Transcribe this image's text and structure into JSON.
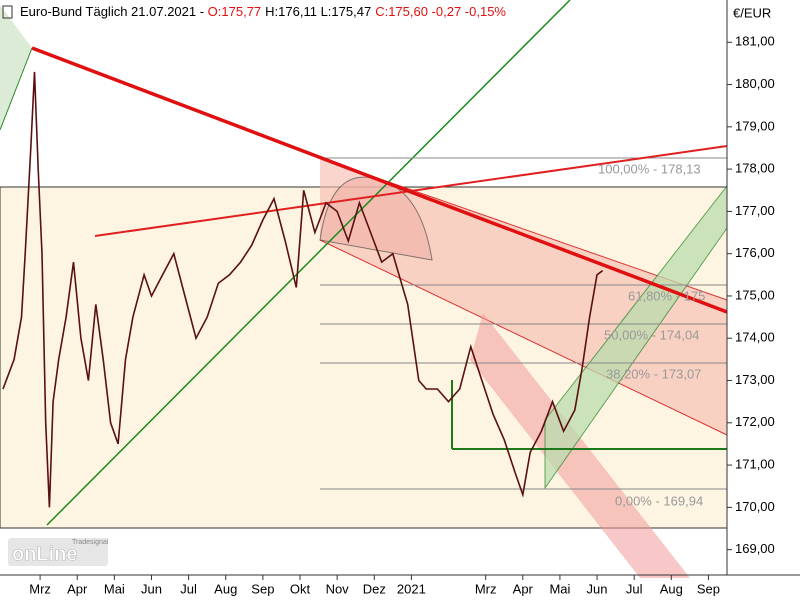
{
  "chart_data": {
    "type": "line",
    "header": {
      "name": "Euro-Bund Täglich  21.07.2021 - ",
      "open": "O:175,77",
      "highlow": "H:176,11 L:175,47",
      "close": "C:175,60 -0,27 -0,15%"
    },
    "unit_label": "€/EUR",
    "logo": {
      "brand": "Tradesignal",
      "text": "onLine"
    },
    "x": [
      0,
      0.3,
      0.5,
      0.6,
      0.75,
      0.85,
      0.95,
      1.05,
      1.15,
      1.25,
      1.35,
      1.5,
      1.7,
      1.9,
      2.1,
      2.3,
      2.5,
      2.7,
      2.9,
      3.1,
      3.3,
      3.5,
      3.8,
      4.0,
      4.3,
      4.6,
      4.9,
      5.2,
      5.5,
      5.8,
      6.1,
      6.4,
      6.7,
      7.0,
      7.3,
      7.6,
      7.9,
      8.1,
      8.4,
      8.7,
      9.0,
      9.3,
      9.6,
      9.9,
      10.2,
      10.5,
      10.9,
      11.2,
      11.4,
      11.7,
      12.0,
      12.3,
      12.6,
      12.9,
      13.2,
      13.5,
      13.8,
      14.0,
      14.2,
      14.5,
      14.8,
      15.1,
      15.4,
      15.6,
      15.8,
      16.0,
      16.15
    ],
    "series": [
      {
        "name": "Euro-Bund",
        "color": "#5a1010",
        "values": [
          172.8,
          173.5,
          174.5,
          176,
          178.5,
          180.3,
          178,
          176,
          172,
          170,
          172.5,
          173.5,
          174.5,
          175.8,
          174,
          173,
          174.8,
          173.5,
          172,
          171.5,
          173.5,
          174.5,
          175.5,
          175,
          175.5,
          176,
          175,
          174,
          174.5,
          175.3,
          175.5,
          175.8,
          176.2,
          176.8,
          177.3,
          176.3,
          175.2,
          177.5,
          176.5,
          177.2,
          177.0,
          176.3,
          177.2,
          176.5,
          175.8,
          176,
          174.8,
          173.0,
          172.8,
          172.8,
          172.5,
          172.8,
          173.8,
          173,
          172.2,
          171.6,
          170.8,
          170.3,
          171.3,
          171.8,
          172.5,
          171.8,
          172.3,
          173.3,
          174.5,
          175.5,
          175.6
        ]
      }
    ],
    "xlim": [
      -0.08,
      19.5
    ],
    "xticks": [
      {
        "value": 1,
        "label": "Mrz"
      },
      {
        "value": 2,
        "label": "Apr"
      },
      {
        "value": 3,
        "label": "Mai"
      },
      {
        "value": 4,
        "label": "Jun"
      },
      {
        "value": 5,
        "label": "Jul"
      },
      {
        "value": 6,
        "label": "Aug"
      },
      {
        "value": 7,
        "label": "Sep"
      },
      {
        "value": 8,
        "label": "Okt"
      },
      {
        "value": 9,
        "label": "Nov"
      },
      {
        "value": 10,
        "label": "Dez"
      },
      {
        "value": 11,
        "label": "2021"
      },
      {
        "value": 13,
        "label": "Mrz"
      },
      {
        "value": 14,
        "label": "Apr"
      },
      {
        "value": 15,
        "label": "Mai"
      },
      {
        "value": 16,
        "label": "Jun"
      },
      {
        "value": 17,
        "label": "Jul"
      },
      {
        "value": 18,
        "label": "Aug"
      },
      {
        "value": 19,
        "label": "Sep"
      }
    ],
    "ylim": [
      168.4,
      182.0
    ],
    "yticks": [
      {
        "value": 169,
        "label": "169,00"
      },
      {
        "value": 170,
        "label": "170,00"
      },
      {
        "value": 171,
        "label": "171,00"
      },
      {
        "value": 172,
        "label": "172,00"
      },
      {
        "value": 173,
        "label": "173,00"
      },
      {
        "value": 174,
        "label": "174,00"
      },
      {
        "value": 175,
        "label": "175,00"
      },
      {
        "value": 176,
        "label": "176,00"
      },
      {
        "value": 177,
        "label": "177,00"
      },
      {
        "value": 178,
        "label": "178,00"
      },
      {
        "value": 179,
        "label": "179,00"
      },
      {
        "value": 180,
        "label": "180,00"
      },
      {
        "value": 181,
        "label": "181,00"
      }
    ],
    "annotations": [
      "100,00% - 178,13",
      "61,80% - 175",
      "50,00% - 174,04",
      "38,20% - 173,07",
      "0,00% - 169,94"
    ]
  }
}
